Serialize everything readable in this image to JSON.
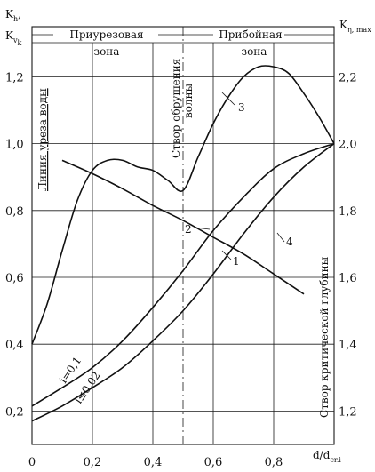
{
  "chart_data": {
    "type": "line",
    "xlabel_main": "d/d",
    "xlabel_sub": "cr.i",
    "ylabel_left_line1_main": "K",
    "ylabel_left_line1_sub": "h",
    "ylabel_left_line1_suffix": ",",
    "ylabel_left_line2_main": "K",
    "ylabel_left_line2_sub": "v",
    "ylabel_left_line2_subsub": "k",
    "ylabel_right_main": "K",
    "ylabel_right_sub": "η, max",
    "xlim": [
      0,
      1.0
    ],
    "ylim_left": [
      0.1,
      1.35
    ],
    "ylim_right": [
      1.1,
      2.35
    ],
    "x_ticks": [
      "0",
      "0,2",
      "0,4",
      "0,6",
      "0,8"
    ],
    "x_tick_values": [
      0,
      0.2,
      0.4,
      0.6,
      0.8
    ],
    "y_left_ticks": [
      "0,2",
      "0,4",
      "0,6",
      "0,8",
      "1,0",
      "1,2"
    ],
    "y_left_tick_values": [
      0.2,
      0.4,
      0.6,
      0.8,
      1.0,
      1.2
    ],
    "y_right_ticks": [
      "1,2",
      "1,4",
      "1,6",
      "1,8",
      "2,0",
      "2,2"
    ],
    "y_right_tick_values": [
      1.2,
      1.4,
      1.6,
      1.8,
      2.0,
      2.2
    ],
    "zones": {
      "left_line1": "Приурезовая",
      "left_line2": "зона",
      "right_line1": "Прибойная",
      "right_line2": "зона"
    },
    "annotations": {
      "shoreline": "Линия уреза воды",
      "breaking_line1": "Створ обрушения",
      "breaking_line2": "волны",
      "critical_depth": "Створ критической глубины",
      "slope_a": "i=0,1",
      "slope_b": "i≤0,02"
    },
    "series": [
      {
        "name": "1",
        "axis": "left",
        "x": [
          0,
          0.1,
          0.2,
          0.3,
          0.4,
          0.5,
          0.6,
          0.7,
          0.8,
          0.9,
          1.0
        ],
        "y": [
          0.17,
          0.215,
          0.27,
          0.33,
          0.41,
          0.5,
          0.61,
          0.73,
          0.84,
          0.93,
          1.0
        ]
      },
      {
        "name": "2",
        "axis": "left",
        "x": [
          0,
          0.1,
          0.2,
          0.3,
          0.4,
          0.5,
          0.6,
          0.7,
          0.8,
          0.9,
          1.0
        ],
        "y": [
          0.215,
          0.27,
          0.33,
          0.41,
          0.51,
          0.62,
          0.74,
          0.84,
          0.925,
          0.97,
          1.0
        ]
      },
      {
        "name": "3",
        "axis": "left",
        "x": [
          0,
          0.05,
          0.1,
          0.15,
          0.2,
          0.25,
          0.3,
          0.35,
          0.4,
          0.45,
          0.5,
          0.55,
          0.6,
          0.65,
          0.7,
          0.75,
          0.8,
          0.85,
          0.9,
          0.95,
          1.0
        ],
        "y": [
          0.4,
          0.52,
          0.68,
          0.83,
          0.92,
          0.95,
          0.95,
          0.93,
          0.92,
          0.89,
          0.86,
          0.96,
          1.06,
          1.14,
          1.2,
          1.23,
          1.23,
          1.21,
          1.15,
          1.08,
          1.0
        ]
      },
      {
        "name": "4",
        "axis": "left",
        "x": [
          0.1,
          0.2,
          0.3,
          0.4,
          0.5,
          0.6,
          0.7,
          0.8,
          0.9
        ],
        "y": [
          0.95,
          0.91,
          0.865,
          0.815,
          0.77,
          0.72,
          0.67,
          0.61,
          0.55
        ]
      }
    ]
  }
}
